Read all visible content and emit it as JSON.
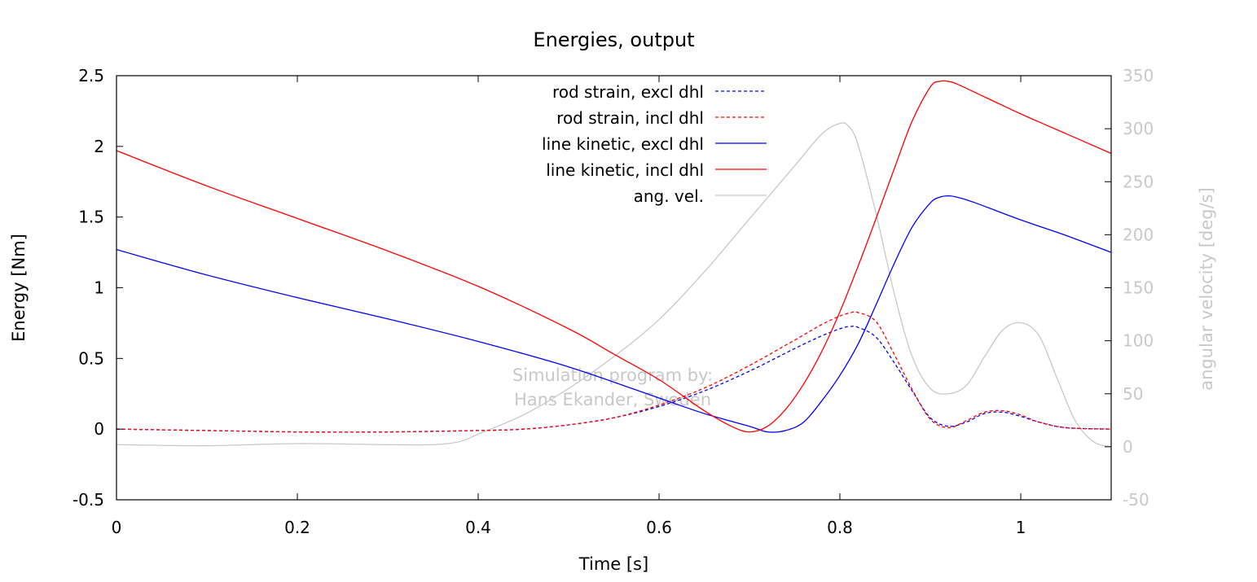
{
  "chart_data": {
    "type": "line",
    "title": "Energies, output",
    "xlabel": "Time [s]",
    "ylabel": "Energy [Nm]",
    "y2label": "angular velocity [deg/s]",
    "xlim": [
      0,
      1.1
    ],
    "ylim": [
      -0.5,
      2.5
    ],
    "y2lim": [
      -50,
      350
    ],
    "x_ticks": [
      "0",
      "0.2",
      "0.4",
      "0.6",
      "0.8",
      "1"
    ],
    "y_ticks": [
      "-0.5",
      "0",
      "0.5",
      "1",
      "1.5",
      "2",
      "2.5"
    ],
    "y2_ticks": [
      "-50",
      "0",
      "50",
      "100",
      "150",
      "200",
      "250",
      "300",
      "350"
    ],
    "grid": false,
    "legend_placement": "top-center",
    "watermark": [
      "Simulation program by:",
      "Hans Ekander, Sweden"
    ],
    "series": [
      {
        "name": "rod strain, excl dhl",
        "color": "#0000ff",
        "dash": "dashed",
        "axis": "left",
        "x": [
          0,
          0.1,
          0.2,
          0.3,
          0.4,
          0.45,
          0.5,
          0.55,
          0.6,
          0.65,
          0.7,
          0.75,
          0.78,
          0.8,
          0.81,
          0.82,
          0.84,
          0.86,
          0.88,
          0.9,
          0.92,
          0.94,
          0.96,
          0.98,
          1.0,
          1.02,
          1.05,
          1.1
        ],
        "y": [
          0.0,
          -0.01,
          -0.02,
          -0.02,
          -0.01,
          0.0,
          0.03,
          0.08,
          0.16,
          0.27,
          0.41,
          0.57,
          0.66,
          0.71,
          0.725,
          0.72,
          0.65,
          0.47,
          0.27,
          0.08,
          0.02,
          0.05,
          0.11,
          0.12,
          0.09,
          0.05,
          0.01,
          0.0
        ]
      },
      {
        "name": "rod strain, incl dhl",
        "color": "#ff0000",
        "dash": "dashed",
        "axis": "left",
        "x": [
          0,
          0.1,
          0.2,
          0.3,
          0.4,
          0.45,
          0.5,
          0.55,
          0.6,
          0.65,
          0.7,
          0.75,
          0.78,
          0.8,
          0.81,
          0.82,
          0.84,
          0.86,
          0.88,
          0.9,
          0.92,
          0.94,
          0.96,
          0.98,
          1.0,
          1.02,
          1.05,
          1.1
        ],
        "y": [
          0.0,
          -0.01,
          -0.02,
          -0.02,
          -0.01,
          0.0,
          0.03,
          0.08,
          0.17,
          0.29,
          0.45,
          0.63,
          0.74,
          0.8,
          0.82,
          0.825,
          0.76,
          0.53,
          0.28,
          0.07,
          0.01,
          0.06,
          0.12,
          0.13,
          0.1,
          0.05,
          0.01,
          0.0
        ]
      },
      {
        "name": "line kinetic, excl dhl",
        "color": "#0000ff",
        "dash": "solid",
        "axis": "left",
        "x": [
          0,
          0.1,
          0.2,
          0.3,
          0.4,
          0.5,
          0.6,
          0.65,
          0.7,
          0.72,
          0.74,
          0.76,
          0.78,
          0.8,
          0.82,
          0.84,
          0.86,
          0.88,
          0.9,
          0.91,
          0.92,
          0.93,
          0.95,
          1.0,
          1.05,
          1.1
        ],
        "y": [
          1.27,
          1.09,
          0.93,
          0.78,
          0.62,
          0.44,
          0.22,
          0.11,
          0.02,
          -0.02,
          -0.01,
          0.05,
          0.2,
          0.38,
          0.6,
          0.88,
          1.17,
          1.43,
          1.6,
          1.64,
          1.65,
          1.64,
          1.6,
          1.48,
          1.37,
          1.25
        ]
      },
      {
        "name": "line kinetic, incl dhl",
        "color": "#ff0000",
        "dash": "solid",
        "axis": "left",
        "x": [
          0,
          0.1,
          0.2,
          0.3,
          0.4,
          0.5,
          0.55,
          0.6,
          0.65,
          0.68,
          0.7,
          0.72,
          0.74,
          0.76,
          0.78,
          0.8,
          0.82,
          0.84,
          0.86,
          0.88,
          0.9,
          0.91,
          0.92,
          0.93,
          0.95,
          1.0,
          1.05,
          1.1
        ],
        "y": [
          1.97,
          1.72,
          1.49,
          1.26,
          1.01,
          0.71,
          0.53,
          0.35,
          0.13,
          0.02,
          -0.02,
          0.02,
          0.14,
          0.32,
          0.55,
          0.83,
          1.15,
          1.49,
          1.84,
          2.18,
          2.42,
          2.46,
          2.46,
          2.44,
          2.38,
          2.23,
          2.09,
          1.95
        ]
      },
      {
        "name": "ang. vel.",
        "color": "#c8c8c8",
        "dash": "solid",
        "axis": "right",
        "x": [
          0,
          0.1,
          0.2,
          0.3,
          0.35,
          0.38,
          0.4,
          0.45,
          0.5,
          0.55,
          0.6,
          0.65,
          0.7,
          0.75,
          0.78,
          0.8,
          0.81,
          0.82,
          0.84,
          0.86,
          0.88,
          0.9,
          0.92,
          0.94,
          0.96,
          0.98,
          1.0,
          1.02,
          1.04,
          1.06,
          1.08,
          1.1
        ],
        "y": [
          2,
          1,
          3,
          2,
          2,
          5,
          12,
          30,
          55,
          85,
          120,
          165,
          215,
          265,
          295,
          305,
          302,
          285,
          220,
          145,
          85,
          55,
          50,
          58,
          85,
          110,
          117,
          105,
          65,
          25,
          5,
          0
        ]
      }
    ]
  }
}
